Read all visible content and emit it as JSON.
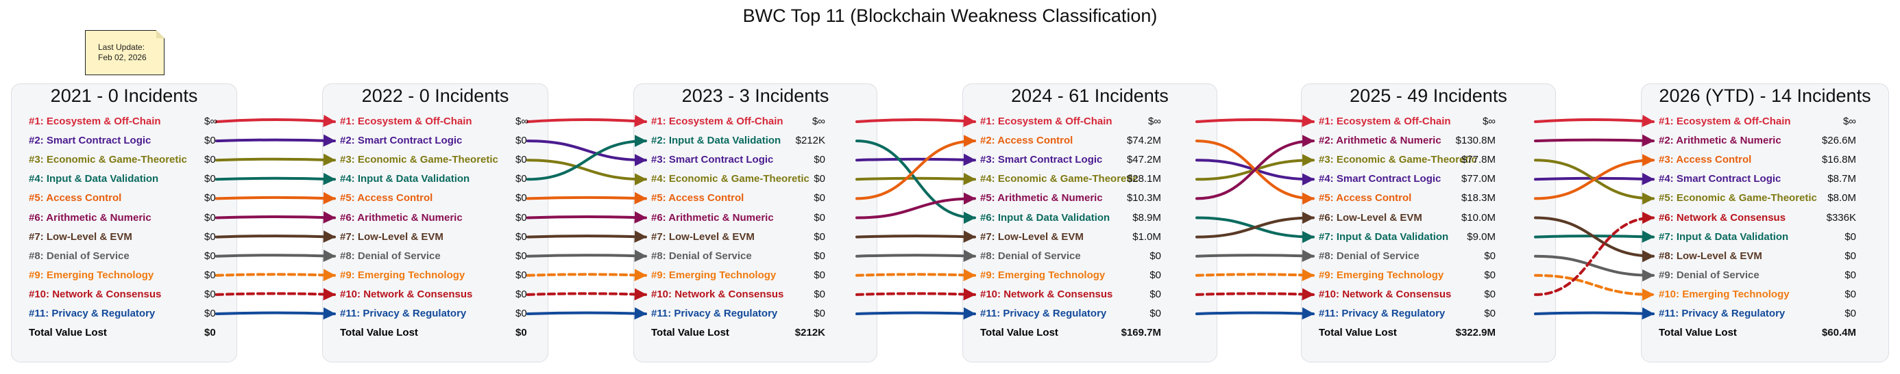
{
  "chart_data": {
    "type": "bump-flow",
    "title": "BWC Top 11 (Blockchain Weakness Classification)",
    "note": {
      "line1": "Last Update:",
      "line2": "Feb 02, 2026"
    },
    "total_label": "Total Value Lost",
    "categories": [
      {
        "id": "ecosystem",
        "name": "Ecosystem & Off-Chain",
        "color": "#d62839"
      },
      {
        "id": "smart",
        "name": "Smart Contract Logic",
        "color": "#4b1b8f"
      },
      {
        "id": "economic",
        "name": "Economic & Game-Theoretic",
        "color": "#7f7a13"
      },
      {
        "id": "input",
        "name": "Input & Data Validation",
        "color": "#0b6b5f"
      },
      {
        "id": "access",
        "name": "Access Control",
        "color": "#e8600e"
      },
      {
        "id": "arith",
        "name": "Arithmetic & Numeric",
        "color": "#8a0f52"
      },
      {
        "id": "lowlevel",
        "name": "Low-Level & EVM",
        "color": "#5a3a26"
      },
      {
        "id": "dos",
        "name": "Denial of Service",
        "color": "#5f5f5f"
      },
      {
        "id": "emerging",
        "name": "Emerging Technology",
        "color": "#f07a10",
        "dashed": true
      },
      {
        "id": "network",
        "name": "Network & Consensus",
        "color": "#b8141c",
        "dashed": true
      },
      {
        "id": "privacy",
        "name": "Privacy & Regulatory",
        "color": "#124a9a"
      }
    ],
    "years": [
      {
        "label": "2021 - 0 Incidents",
        "order": [
          "ecosystem",
          "smart",
          "economic",
          "input",
          "access",
          "arith",
          "lowlevel",
          "dos",
          "emerging",
          "network",
          "privacy"
        ],
        "values": [
          "$∞",
          "$0",
          "$0",
          "$0",
          "$0",
          "$0",
          "$0",
          "$0",
          "$0",
          "$0",
          "$0"
        ],
        "total": "$0"
      },
      {
        "label": "2022 - 0 Incidents",
        "order": [
          "ecosystem",
          "smart",
          "economic",
          "input",
          "access",
          "arith",
          "lowlevel",
          "dos",
          "emerging",
          "network",
          "privacy"
        ],
        "values": [
          "$∞",
          "$0",
          "$0",
          "$0",
          "$0",
          "$0",
          "$0",
          "$0",
          "$0",
          "$0",
          "$0"
        ],
        "total": "$0"
      },
      {
        "label": "2023 - 3 Incidents",
        "order": [
          "ecosystem",
          "input",
          "smart",
          "economic",
          "access",
          "arith",
          "lowlevel",
          "dos",
          "emerging",
          "network",
          "privacy"
        ],
        "values": [
          "$∞",
          "$212K",
          "$0",
          "$0",
          "$0",
          "$0",
          "$0",
          "$0",
          "$0",
          "$0",
          "$0"
        ],
        "total": "$212K"
      },
      {
        "label": "2024 - 61 Incidents",
        "order": [
          "ecosystem",
          "access",
          "smart",
          "economic",
          "arith",
          "input",
          "lowlevel",
          "dos",
          "emerging",
          "network",
          "privacy"
        ],
        "values": [
          "$∞",
          "$74.2M",
          "$47.2M",
          "$28.1M",
          "$10.3M",
          "$8.9M",
          "$1.0M",
          "$0",
          "$0",
          "$0",
          "$0"
        ],
        "total": "$169.7M"
      },
      {
        "label": "2025 - 49 Incidents",
        "order": [
          "ecosystem",
          "arith",
          "economic",
          "smart",
          "access",
          "lowlevel",
          "input",
          "dos",
          "emerging",
          "network",
          "privacy"
        ],
        "values": [
          "$∞",
          "$130.8M",
          "$77.8M",
          "$77.0M",
          "$18.3M",
          "$10.0M",
          "$9.0M",
          "$0",
          "$0",
          "$0",
          "$0"
        ],
        "total": "$322.9M"
      },
      {
        "label": "2026 (YTD) - 14 Incidents",
        "order": [
          "ecosystem",
          "arith",
          "access",
          "smart",
          "economic",
          "network",
          "input",
          "lowlevel",
          "dos",
          "emerging",
          "privacy"
        ],
        "values": [
          "$∞",
          "$26.6M",
          "$16.8M",
          "$8.7M",
          "$8.0M",
          "$336K",
          "$0",
          "$0",
          "$0",
          "$0",
          "$0"
        ],
        "total": "$60.4M"
      }
    ]
  }
}
